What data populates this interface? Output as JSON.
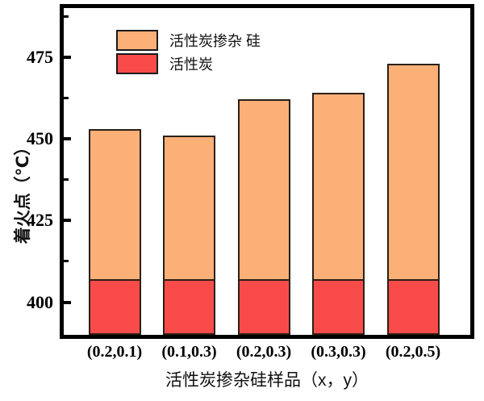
{
  "chart_data": {
    "type": "bar",
    "stacked": true,
    "title": "",
    "xlabel": "活性炭掺杂硅样品（x，y）",
    "ylabel": "着火点（℃）",
    "ylim": [
      390,
      490
    ],
    "yticks": [
      400,
      425,
      450,
      475
    ],
    "yticks_minor": [
      412.5,
      437.5,
      462.5,
      487.5
    ],
    "grid": false,
    "legend_position": "upper-left",
    "categories": [
      "(0.2,0.1)",
      "(0.1,0.3)",
      "(0.2,0.3)",
      "(0.3,0.3)",
      "(0.2,0.5)"
    ],
    "series": [
      {
        "name": "活性炭掺杂 硅",
        "role": "total-top-segment",
        "color": "#fbb078",
        "edge_color": "#2a2016",
        "values": [
          453,
          451,
          462,
          464,
          473
        ]
      },
      {
        "name": "活性炭",
        "role": "base-segment",
        "color": "#fa4b4b",
        "edge_color": "#2a2016",
        "values": [
          407,
          407,
          407,
          407,
          407
        ]
      }
    ],
    "colors": {
      "axis": "#000000",
      "background": "#ffffff",
      "doped_fill": "#fbb078",
      "carbon_fill": "#fa4b4b",
      "bar_edge": "#2a2016"
    }
  }
}
